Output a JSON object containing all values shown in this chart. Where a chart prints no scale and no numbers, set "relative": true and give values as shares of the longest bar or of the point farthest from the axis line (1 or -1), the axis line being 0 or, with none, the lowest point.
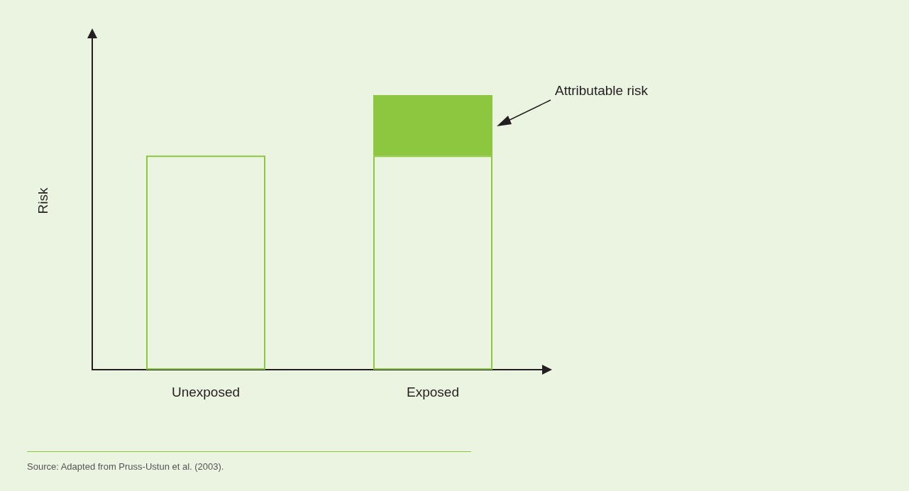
{
  "chart_data": {
    "type": "bar",
    "relative": true,
    "stacked": true,
    "ylabel": "Risk",
    "categories": [
      "Unexposed",
      "Exposed"
    ],
    "series": [
      {
        "color": "#8dc63f",
        "values": [
          0.78,
          0.78
        ]
      },
      {
        "name": "Attributable risk",
        "color": "#8dc63f",
        "values": [
          null,
          0.22
        ]
      }
    ],
    "annotations": [
      "Source: Adapted from Pruss-Ustun et al. (2003)."
    ],
    "grid": false,
    "legend": false
  }
}
